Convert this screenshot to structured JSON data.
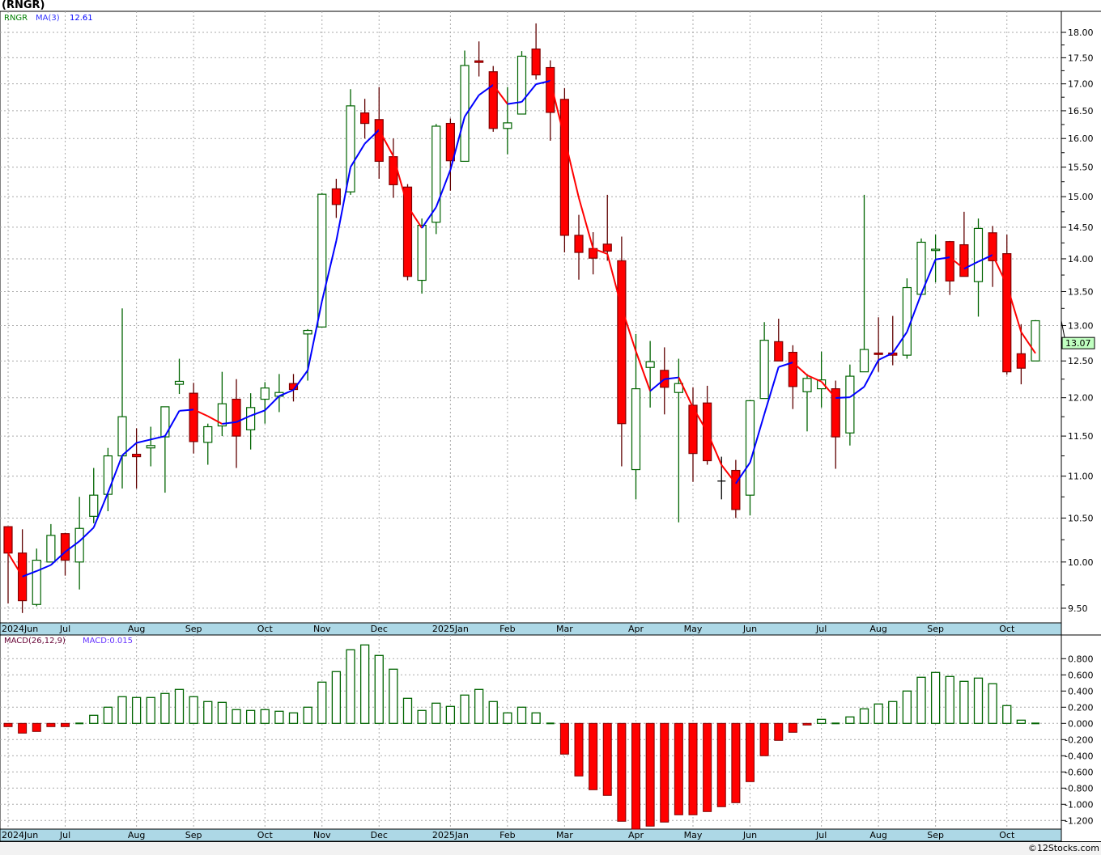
{
  "title": "(RNGR)",
  "footer": "©12Stocks.com",
  "colors": {
    "up": "#006400",
    "down": "#ff0000",
    "down_border": "#800000",
    "ma_up": "#0000ff",
    "ma_down": "#ff0000",
    "axis_band": "#add8e6",
    "last_price_bg": "#c0ffc0"
  },
  "chart_data": [
    {
      "type": "candlestick",
      "ticker_label": "RNGR",
      "ma_label": "MA(3)",
      "ma_value": "12.61",
      "ma_period": 3,
      "y_scale": "log",
      "ylim": [
        9.3,
        18.4
      ],
      "last_price": "13.07",
      "price_ticks": [
        "9.50",
        "10.00",
        "10.50",
        "11.00",
        "11.50",
        "12.00",
        "12.50",
        "13.00",
        "13.50",
        "14.00",
        "14.50",
        "15.00",
        "15.50",
        "16.00",
        "16.50",
        "17.00",
        "17.50",
        "18.00"
      ],
      "x_labels": [
        {
          "label": "2024Jun",
          "index": 0
        },
        {
          "label": "Jul",
          "index": 4
        },
        {
          "label": "Aug",
          "index": 9
        },
        {
          "label": "Sep",
          "index": 13
        },
        {
          "label": "Oct",
          "index": 18
        },
        {
          "label": "Nov",
          "index": 22
        },
        {
          "label": "Dec",
          "index": 26
        },
        {
          "label": "2025Jan",
          "index": 31
        },
        {
          "label": "Feb",
          "index": 35
        },
        {
          "label": "Mar",
          "index": 39
        },
        {
          "label": "Apr",
          "index": 44
        },
        {
          "label": "May",
          "index": 48
        },
        {
          "label": "Jun",
          "index": 52
        },
        {
          "label": "Jul",
          "index": 57
        },
        {
          "label": "Aug",
          "index": 61
        },
        {
          "label": "Sep",
          "index": 65
        },
        {
          "label": "Oct",
          "index": 70
        }
      ],
      "ohlc": [
        [
          10.4,
          10.4,
          9.55,
          10.1
        ],
        [
          10.1,
          10.37,
          9.45,
          9.58
        ],
        [
          9.54,
          10.15,
          9.52,
          10.02
        ],
        [
          10.0,
          10.43,
          10.0,
          10.3
        ],
        [
          10.32,
          10.33,
          9.85,
          10.02
        ],
        [
          10.0,
          10.75,
          9.7,
          10.38
        ],
        [
          10.52,
          11.1,
          10.44,
          10.77
        ],
        [
          10.78,
          11.35,
          10.58,
          11.25
        ],
        [
          11.25,
          13.25,
          10.85,
          11.75
        ],
        [
          11.27,
          11.6,
          10.85,
          11.24
        ],
        [
          11.35,
          11.62,
          11.12,
          11.38
        ],
        [
          11.49,
          11.88,
          10.8,
          11.88
        ],
        [
          12.18,
          12.53,
          12.05,
          12.22
        ],
        [
          12.06,
          12.2,
          11.28,
          11.43
        ],
        [
          11.42,
          11.66,
          11.14,
          11.62
        ],
        [
          11.63,
          12.35,
          11.5,
          11.92
        ],
        [
          11.98,
          12.25,
          11.1,
          11.5
        ],
        [
          11.58,
          12.06,
          11.33,
          11.87
        ],
        [
          11.98,
          12.21,
          11.66,
          12.13
        ],
        [
          12.02,
          12.32,
          11.81,
          12.07
        ],
        [
          12.19,
          12.32,
          11.95,
          12.11
        ],
        [
          12.88,
          12.95,
          12.23,
          12.93
        ],
        [
          12.98,
          15.06,
          12.98,
          15.04
        ],
        [
          15.13,
          15.3,
          14.65,
          14.87
        ],
        [
          15.08,
          16.9,
          15.03,
          16.59
        ],
        [
          16.46,
          16.72,
          16.0,
          16.27
        ],
        [
          16.34,
          16.94,
          15.3,
          15.6
        ],
        [
          15.68,
          16.0,
          14.98,
          15.2
        ],
        [
          15.16,
          15.21,
          13.67,
          13.73
        ],
        [
          13.67,
          14.64,
          13.47,
          14.53
        ],
        [
          14.58,
          16.26,
          14.39,
          16.22
        ],
        [
          16.27,
          16.36,
          15.1,
          15.61
        ],
        [
          15.6,
          17.64,
          15.6,
          17.35
        ],
        [
          17.44,
          17.82,
          17.14,
          17.41
        ],
        [
          17.23,
          17.34,
          16.12,
          16.18
        ],
        [
          16.18,
          16.94,
          15.72,
          16.28
        ],
        [
          16.44,
          17.63,
          16.44,
          17.53
        ],
        [
          17.67,
          18.18,
          17.08,
          17.17
        ],
        [
          17.31,
          17.45,
          15.96,
          16.47
        ],
        [
          16.71,
          16.92,
          14.1,
          14.37
        ],
        [
          14.37,
          14.7,
          13.68,
          14.1
        ],
        [
          14.16,
          14.42,
          13.76,
          14.01
        ],
        [
          14.23,
          15.03,
          13.97,
          14.12
        ],
        [
          13.97,
          14.35,
          11.12,
          11.66
        ],
        [
          11.08,
          12.88,
          10.72,
          12.12
        ],
        [
          12.41,
          12.78,
          11.87,
          12.49
        ],
        [
          12.37,
          12.69,
          11.78,
          12.14
        ],
        [
          12.07,
          12.53,
          10.45,
          12.19
        ],
        [
          11.9,
          12.14,
          10.93,
          11.28
        ],
        [
          11.93,
          12.16,
          11.14,
          11.19
        ],
        [
          10.94,
          11.24,
          10.72,
          10.94
        ],
        [
          11.07,
          11.2,
          10.5,
          10.6
        ],
        [
          10.77,
          11.97,
          10.53,
          11.96
        ],
        [
          11.99,
          13.05,
          11.99,
          12.79
        ],
        [
          12.77,
          13.1,
          12.5,
          12.5
        ],
        [
          12.62,
          12.72,
          11.85,
          12.15
        ],
        [
          12.08,
          12.32,
          11.56,
          12.26
        ],
        [
          12.12,
          12.63,
          11.87,
          12.24
        ],
        [
          12.12,
          12.23,
          11.09,
          11.49
        ],
        [
          11.54,
          12.45,
          11.38,
          12.29
        ],
        [
          12.35,
          15.03,
          12.35,
          12.66
        ],
        [
          12.61,
          13.12,
          12.35,
          12.59
        ],
        [
          12.61,
          13.14,
          12.44,
          12.58
        ],
        [
          12.58,
          13.7,
          12.53,
          13.56
        ],
        [
          13.46,
          14.32,
          13.46,
          14.26
        ],
        [
          14.13,
          14.38,
          13.64,
          14.15
        ],
        [
          14.27,
          14.28,
          13.45,
          13.66
        ],
        [
          14.22,
          14.75,
          13.73,
          13.73
        ],
        [
          13.65,
          14.64,
          13.13,
          14.48
        ],
        [
          14.41,
          14.52,
          13.57,
          13.97
        ],
        [
          14.08,
          14.38,
          12.31,
          12.35
        ],
        [
          12.6,
          13.02,
          12.18,
          12.4
        ],
        [
          12.5,
          13.08,
          12.5,
          13.07
        ]
      ]
    },
    {
      "type": "bar",
      "label": "MACD(26,12,9)",
      "value_label": "MACD:0.015",
      "ylim": [
        -1.33,
        1.0
      ],
      "ticks": [
        "0.800",
        "0.600",
        "0.400",
        "0.200",
        "0.000",
        "-0.200",
        "-0.400",
        "-0.600",
        "-0.800",
        "-1.000",
        "-1.200"
      ],
      "values": [
        -0.04,
        -0.12,
        -0.1,
        -0.04,
        -0.04,
        0.01,
        0.1,
        0.2,
        0.33,
        0.32,
        0.32,
        0.37,
        0.42,
        0.33,
        0.27,
        0.26,
        0.17,
        0.16,
        0.17,
        0.15,
        0.13,
        0.2,
        0.51,
        0.64,
        0.91,
        0.97,
        0.84,
        0.67,
        0.31,
        0.16,
        0.25,
        0.21,
        0.35,
        0.42,
        0.27,
        0.13,
        0.2,
        0.13,
        0.0,
        -0.38,
        -0.65,
        -0.82,
        -0.89,
        -1.21,
        -1.33,
        -1.27,
        -1.22,
        -1.13,
        -1.13,
        -1.09,
        -1.03,
        -0.98,
        -0.72,
        -0.4,
        -0.21,
        -0.11,
        -0.02,
        0.05,
        0.0,
        0.08,
        0.18,
        0.24,
        0.27,
        0.4,
        0.57,
        0.63,
        0.58,
        0.52,
        0.56,
        0.49,
        0.22,
        0.04,
        0.015
      ]
    }
  ]
}
